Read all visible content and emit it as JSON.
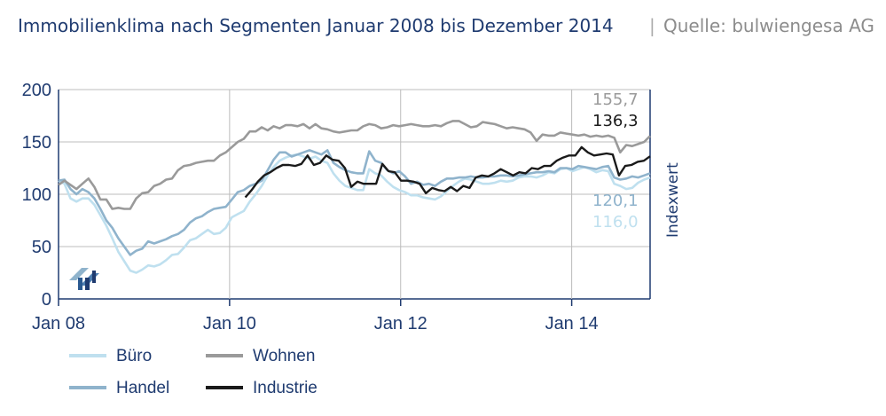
{
  "header": {
    "title": "Immobilienklima nach Segmenten Januar 2008 bis Dezember 2014",
    "separator": "|",
    "source": "Quelle: bulwiengesa AG"
  },
  "chart_data": {
    "type": "line",
    "title": "Immobilienklima nach Segmenten Januar 2008 bis Dezember 2014",
    "ylabel": "Indexwert",
    "xlabel": "",
    "ylim": [
      0,
      200
    ],
    "yticks": [
      0,
      50,
      100,
      150,
      200
    ],
    "xlim": [
      "2008-01",
      "2014-12"
    ],
    "x_tick_labels": [
      "Jan 08",
      "Jan 10",
      "Jan 12",
      "Jan 14"
    ],
    "x_tick_dates": [
      "2008-01",
      "2010-01",
      "2012-01",
      "2014-01"
    ],
    "grid": true,
    "legend_position": "bottom-left",
    "x_start": "2008-01",
    "x_step": "monthly",
    "colors": {
      "Büro": "#bfe0ef",
      "Handel": "#8fb3cc",
      "Wohnen": "#9a9a9a",
      "Industrie": "#1a1a1a",
      "axis": "#1f3b70",
      "title": "#1f3b70",
      "source": "#8c8c8c",
      "grid": "#bcbcbc"
    },
    "series": [
      {
        "name": "Büro",
        "end_label": "116,0",
        "values": [
          113,
          110,
          96,
          93,
          96,
          96,
          90,
          80,
          70,
          58,
          45,
          36,
          27,
          25,
          28,
          32,
          31,
          33,
          37,
          42,
          43,
          49,
          56,
          58,
          62,
          66,
          62,
          63,
          68,
          78,
          81,
          84,
          93,
          100,
          108,
          118,
          126,
          132,
          135,
          137,
          138,
          136,
          134,
          136,
          132,
          130,
          120,
          113,
          108,
          106,
          104,
          104,
          124,
          120,
          118,
          112,
          107,
          104,
          102,
          99,
          99,
          97,
          96,
          95,
          98,
          103,
          108,
          112,
          115,
          114,
          112,
          110,
          110,
          111,
          113,
          112,
          113,
          116,
          117,
          117,
          116,
          118,
          121,
          120,
          124,
          125,
          122,
          124,
          126,
          124,
          121,
          123,
          122,
          110,
          108,
          105,
          106,
          111,
          114,
          116
        ]
      },
      {
        "name": "Handel",
        "end_label": "120,1",
        "values": [
          113,
          114,
          105,
          100,
          105,
          102,
          96,
          86,
          75,
          68,
          58,
          50,
          42,
          46,
          48,
          55,
          53,
          55,
          57,
          60,
          62,
          66,
          73,
          77,
          79,
          83,
          86,
          87,
          88,
          95,
          102,
          104,
          108,
          110,
          113,
          123,
          133,
          140,
          140,
          136,
          138,
          140,
          142,
          140,
          138,
          142,
          130,
          126,
          123,
          121,
          120,
          120,
          141,
          132,
          130,
          123,
          120,
          122,
          117,
          110,
          112,
          109,
          110,
          108,
          112,
          115,
          115,
          116,
          116,
          117,
          116,
          116,
          117,
          117,
          118,
          118,
          117,
          118,
          119,
          120,
          121,
          121,
          122,
          121,
          125,
          125,
          124,
          127,
          126,
          125,
          124,
          126,
          127,
          116,
          114,
          115,
          117,
          116,
          118,
          120
        ]
      },
      {
        "name": "Wohnen",
        "end_label": "155,7",
        "values": [
          109,
          113,
          109,
          105,
          110,
          115,
          107,
          95,
          95,
          86,
          87,
          86,
          86,
          96,
          101,
          102,
          108,
          110,
          114,
          115,
          123,
          127,
          128,
          130,
          131,
          132,
          132,
          137,
          140,
          145,
          150,
          153,
          160,
          160,
          164,
          161,
          165,
          163,
          166,
          166,
          165,
          167,
          163,
          167,
          163,
          162,
          160,
          159,
          160,
          161,
          161,
          165,
          167,
          166,
          163,
          164,
          166,
          165,
          166,
          167,
          166,
          165,
          165,
          166,
          165,
          168,
          170,
          170,
          167,
          164,
          165,
          169,
          168,
          167,
          165,
          163,
          164,
          163,
          162,
          159,
          151,
          157,
          156,
          156,
          159,
          158,
          157,
          156,
          157,
          155,
          156,
          155,
          156,
          154,
          140,
          147,
          146,
          148,
          150,
          155.7
        ]
      },
      {
        "name": "Industrie",
        "end_label": "136,3",
        "values": [
          null,
          null,
          null,
          null,
          null,
          null,
          null,
          null,
          null,
          null,
          null,
          null,
          null,
          null,
          null,
          null,
          null,
          null,
          null,
          null,
          null,
          null,
          null,
          null,
          null,
          null,
          null,
          null,
          null,
          null,
          97,
          104,
          112,
          118,
          121,
          125,
          128,
          128,
          127,
          129,
          137,
          128,
          130,
          137,
          133,
          132,
          125,
          107,
          112,
          110,
          110,
          110,
          129,
          122,
          121,
          113,
          113,
          112,
          110,
          101,
          106,
          104,
          103,
          107,
          103,
          108,
          106,
          116,
          118,
          117,
          120,
          124,
          121,
          118,
          121,
          120,
          125,
          124,
          127,
          127,
          132,
          135,
          137,
          137,
          145,
          140,
          137,
          138,
          139,
          138,
          118,
          127,
          128,
          131,
          132,
          136.3
        ]
      }
    ]
  },
  "legend": {
    "items": [
      {
        "label": "Büro"
      },
      {
        "label": "Wohnen"
      },
      {
        "label": "Handel"
      },
      {
        "label": "Industrie"
      }
    ]
  }
}
